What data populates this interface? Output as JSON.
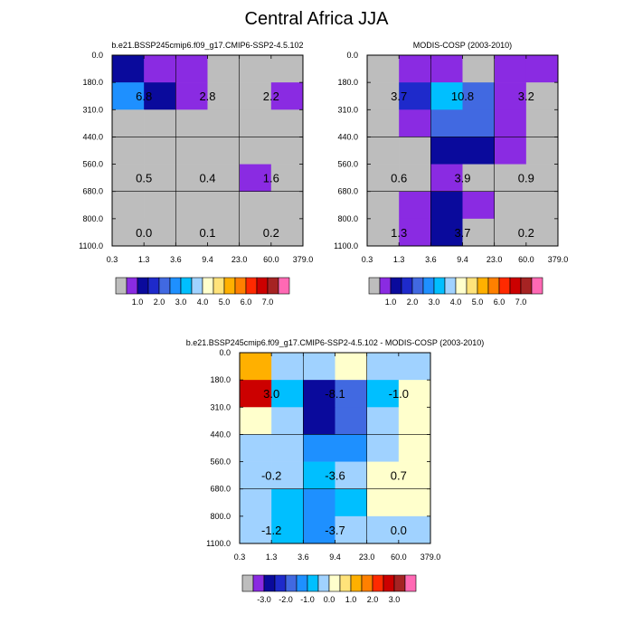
{
  "figure": {
    "title": "Central Africa JJA"
  },
  "palette": {
    "seq": [
      "#bdbdbd",
      "#8a2be2",
      "#0a0a9c",
      "#1e2acb",
      "#4169e1",
      "#1e90ff",
      "#00bfff",
      "#a0d2ff",
      "#ffffcc",
      "#ffe37a",
      "#ffb000",
      "#ff8000",
      "#ff2a00",
      "#cc0000",
      "#a62323",
      "#ff69b4"
    ],
    "grey": "#bdbdbd"
  },
  "chart_data": [
    {
      "type": "heatmap",
      "title": "b.e21.BSSP245cmip6.f09_g17.CMIP6-SSP2-4.5.102",
      "x_edges": [
        "0.3",
        "1.3",
        "3.6",
        "9.4",
        "23.0",
        "60.0",
        "379.0"
      ],
      "y_edges": [
        "0.0",
        "180.0",
        "310.0",
        "440.0",
        "560.0",
        "680.0",
        "800.0",
        "1100.0"
      ],
      "cells": [
        [
          2,
          1,
          1,
          0,
          0,
          0
        ],
        [
          5,
          2,
          1,
          0,
          0,
          1
        ],
        [
          0,
          0,
          0,
          0,
          0,
          0
        ],
        [
          0,
          0,
          0,
          0,
          0,
          0
        ],
        [
          0,
          0,
          0,
          0,
          1,
          0
        ],
        [
          0,
          0,
          0,
          0,
          0,
          0
        ],
        [
          0,
          0,
          0,
          0,
          0,
          0
        ]
      ],
      "labels": [
        {
          "row": 1,
          "col": 0,
          "text": "6.8"
        },
        {
          "row": 1,
          "col": 2,
          "text": "2.8"
        },
        {
          "row": 1,
          "col": 4,
          "text": "2.2"
        },
        {
          "row": 4,
          "col": 0,
          "text": "0.5"
        },
        {
          "row": 4,
          "col": 2,
          "text": "0.4"
        },
        {
          "row": 4,
          "col": 4,
          "text": "1.6"
        },
        {
          "row": 6,
          "col": 0,
          "text": "0.0"
        },
        {
          "row": 6,
          "col": 2,
          "text": "0.1"
        },
        {
          "row": 6,
          "col": 4,
          "text": "0.2"
        }
      ],
      "colorbar_labels": [
        "1.0",
        "2.0",
        "3.0",
        "4.0",
        "5.0",
        "6.0",
        "7.0"
      ]
    },
    {
      "type": "heatmap",
      "title": "MODIS-COSP (2003-2010)",
      "x_edges": [
        "0.3",
        "1.3",
        "3.6",
        "9.4",
        "23.0",
        "60.0",
        "379.0"
      ],
      "y_edges": [
        "0.0",
        "180.0",
        "310.0",
        "440.0",
        "560.0",
        "680.0",
        "800.0",
        "1100.0"
      ],
      "cells": [
        [
          0,
          1,
          1,
          0,
          1,
          1
        ],
        [
          0,
          3,
          6,
          4,
          1,
          0
        ],
        [
          0,
          1,
          4,
          4,
          1,
          0
        ],
        [
          0,
          0,
          2,
          2,
          1,
          0
        ],
        [
          0,
          0,
          1,
          0,
          0,
          0
        ],
        [
          0,
          1,
          2,
          1,
          0,
          0
        ],
        [
          0,
          1,
          2,
          0,
          0,
          0
        ]
      ],
      "labels": [
        {
          "row": 1,
          "col": 0,
          "text": "3.7"
        },
        {
          "row": 1,
          "col": 2,
          "text": "10.8"
        },
        {
          "row": 1,
          "col": 4,
          "text": "3.2"
        },
        {
          "row": 4,
          "col": 0,
          "text": "0.6"
        },
        {
          "row": 4,
          "col": 2,
          "text": "3.9"
        },
        {
          "row": 4,
          "col": 4,
          "text": "0.9"
        },
        {
          "row": 6,
          "col": 0,
          "text": "1.3"
        },
        {
          "row": 6,
          "col": 2,
          "text": "3.7"
        },
        {
          "row": 6,
          "col": 4,
          "text": "0.2"
        }
      ],
      "colorbar_labels": [
        "1.0",
        "2.0",
        "3.0",
        "4.0",
        "5.0",
        "6.0",
        "7.0"
      ]
    },
    {
      "type": "heatmap",
      "title": "b.e21.BSSP245cmip6.f09_g17.CMIP6-SSP2-4.5.102 - MODIS-COSP (2003-2010)",
      "x_edges": [
        "0.3",
        "1.3",
        "3.6",
        "9.4",
        "23.0",
        "60.0",
        "379.0"
      ],
      "y_edges": [
        "0.0",
        "180.0",
        "310.0",
        "440.0",
        "560.0",
        "680.0",
        "800.0",
        "1100.0"
      ],
      "cells": [
        [
          10,
          7,
          7,
          8,
          7,
          7
        ],
        [
          13,
          6,
          2,
          4,
          6,
          8
        ],
        [
          8,
          7,
          2,
          4,
          7,
          8
        ],
        [
          7,
          7,
          5,
          5,
          7,
          8
        ],
        [
          7,
          7,
          6,
          7,
          8,
          8
        ],
        [
          7,
          6,
          5,
          6,
          8,
          8
        ],
        [
          7,
          6,
          5,
          7,
          7,
          7
        ]
      ],
      "labels": [
        {
          "row": 1,
          "col": 0,
          "text": "3.0"
        },
        {
          "row": 1,
          "col": 2,
          "text": "-8.1"
        },
        {
          "row": 1,
          "col": 4,
          "text": "-1.0"
        },
        {
          "row": 4,
          "col": 0,
          "text": "-0.2"
        },
        {
          "row": 4,
          "col": 2,
          "text": "-3.6"
        },
        {
          "row": 4,
          "col": 4,
          "text": "0.7"
        },
        {
          "row": 6,
          "col": 0,
          "text": "-1.2"
        },
        {
          "row": 6,
          "col": 2,
          "text": "-3.7"
        },
        {
          "row": 6,
          "col": 4,
          "text": "0.0"
        }
      ],
      "colorbar_labels": [
        "-3.0",
        "-2.0",
        "-1.0",
        "0.0",
        "1.0",
        "2.0",
        "3.0"
      ]
    }
  ]
}
